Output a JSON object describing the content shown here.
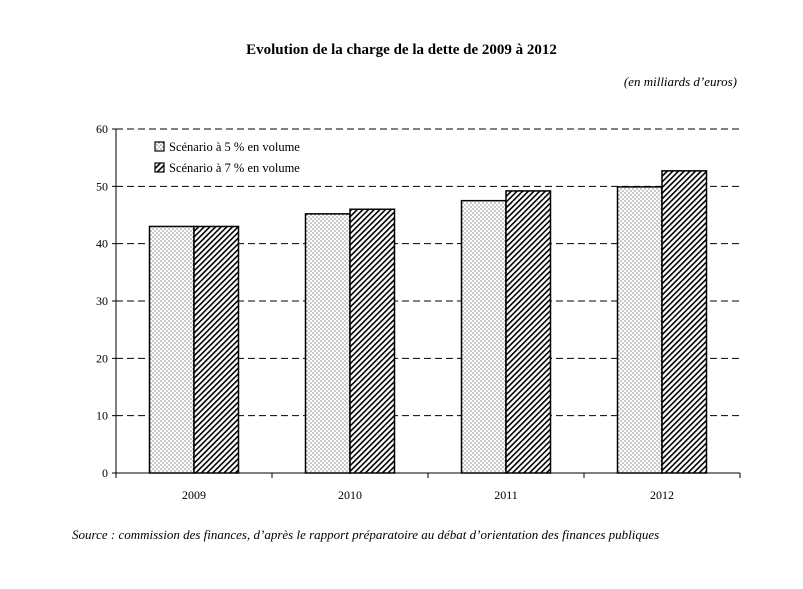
{
  "chart_data": {
    "type": "bar",
    "title": "Evolution de la charge de la dette de 2009 à 2012",
    "unit": "(en milliards d’euros)",
    "categories": [
      "2009",
      "2010",
      "2011",
      "2012"
    ],
    "series": [
      {
        "name": "Scénario à 5 % en volume",
        "values": [
          43,
          45.2,
          47.5,
          49.9
        ],
        "pattern": "dots"
      },
      {
        "name": "Scénario à 7 % en volume",
        "values": [
          43,
          46,
          49.2,
          52.7
        ],
        "pattern": "hatch"
      }
    ],
    "ylim": [
      0,
      60
    ],
    "yticks": [
      0,
      10,
      20,
      30,
      40,
      50,
      60
    ],
    "grid": true,
    "legend_position": "top-left",
    "xlabel": "",
    "ylabel": ""
  },
  "source": "Source : commission des finances, d’après le rapport préparatoire au débat d’orientation des finances publiques"
}
